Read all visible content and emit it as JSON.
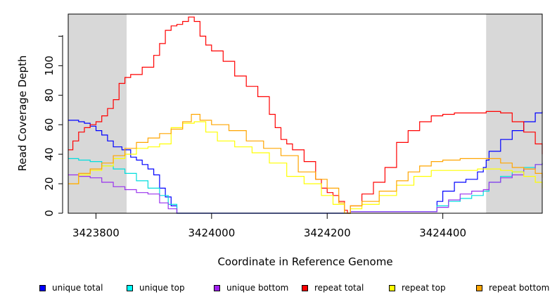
{
  "chart_data": {
    "type": "line",
    "xlabel": "Coordinate in Reference Genome",
    "ylabel": "Read Coverage Depth",
    "xlim": [
      3423752,
      3424572
    ],
    "ylim": [
      0,
      135
    ],
    "x_ticks": [
      3423800,
      3424000,
      3424200,
      3424400
    ],
    "y_ticks": [
      0,
      20,
      40,
      60,
      80,
      100
    ],
    "shaded_regions": [
      [
        3423752,
        3423853
      ],
      [
        3424475,
        3424572
      ]
    ],
    "grid": false,
    "legend_position": "bottom",
    "series": [
      {
        "name": "unique total",
        "color": "#0000ff",
        "x": [
          3423752,
          3423770,
          3423780,
          3423790,
          3423800,
          3423810,
          3423820,
          3423830,
          3423845,
          3423860,
          3423870,
          3423880,
          3423890,
          3423900,
          3423910,
          3423920,
          3423930,
          3423940,
          3423950,
          3424000,
          3424100,
          3424200,
          3424230,
          3424240,
          3424300,
          3424380,
          3424390,
          3424400,
          3424420,
          3424440,
          3424460,
          3424470,
          3424475,
          3424480,
          3424500,
          3424520,
          3424540,
          3424560,
          3424572
        ],
        "y": [
          63,
          62,
          61,
          59,
          56,
          53,
          49,
          45,
          43,
          38,
          36,
          33,
          30,
          26,
          17,
          11,
          5,
          0,
          0,
          0,
          0,
          0,
          0,
          1,
          1,
          1,
          8,
          15,
          21,
          23,
          28,
          31,
          36,
          42,
          50,
          56,
          62,
          68,
          69
        ]
      },
      {
        "name": "unique top",
        "color": "#00dddd",
        "x": [
          3423752,
          3423770,
          3423790,
          3423810,
          3423830,
          3423850,
          3423870,
          3423890,
          3423910,
          3423925,
          3423940,
          3424000,
          3424100,
          3424200,
          3424230,
          3424240,
          3424300,
          3424380,
          3424390,
          3424410,
          3424430,
          3424450,
          3424470,
          3424480,
          3424500,
          3424520,
          3424540,
          3424560,
          3424572
        ],
        "y": [
          37,
          36,
          35,
          32,
          30,
          27,
          22,
          17,
          12,
          6,
          0,
          0,
          0,
          0,
          0,
          1,
          1,
          1,
          5,
          8,
          10,
          12,
          15,
          21,
          25,
          28,
          31,
          33,
          34
        ]
      },
      {
        "name": "unique bottom",
        "color": "#9933ee",
        "x": [
          3423752,
          3423770,
          3423790,
          3423810,
          3423830,
          3423850,
          3423870,
          3423890,
          3423910,
          3423925,
          3423940,
          3424000,
          3424100,
          3424200,
          3424230,
          3424240,
          3424300,
          3424380,
          3424390,
          3424410,
          3424430,
          3424450,
          3424470,
          3424480,
          3424500,
          3424520,
          3424540,
          3424560,
          3424572
        ],
        "y": [
          26,
          25,
          24,
          21,
          18,
          16,
          14,
          13,
          7,
          3,
          0,
          0,
          0,
          0,
          0,
          1,
          1,
          1,
          4,
          9,
          13,
          15,
          16,
          21,
          24,
          26,
          30,
          33,
          34
        ]
      },
      {
        "name": "repeat total",
        "color": "#ff0000",
        "x": [
          3423752,
          3423760,
          3423770,
          3423780,
          3423790,
          3423800,
          3423810,
          3423820,
          3423830,
          3423840,
          3423850,
          3423860,
          3423880,
          3423900,
          3423910,
          3423920,
          3423930,
          3423940,
          3423950,
          3423960,
          3423970,
          3423980,
          3423990,
          3424000,
          3424020,
          3424040,
          3424060,
          3424080,
          3424100,
          3424110,
          3424120,
          3424130,
          3424140,
          3424160,
          3424180,
          3424190,
          3424200,
          3424210,
          3424220,
          3424230,
          3424235,
          3424240,
          3424260,
          3424280,
          3424300,
          3424320,
          3424340,
          3424360,
          3424380,
          3424400,
          3424420,
          3424440,
          3424460,
          3424475,
          3424500,
          3424520,
          3424540,
          3424560,
          3424572
        ],
        "y": [
          43,
          49,
          55,
          58,
          60,
          62,
          66,
          71,
          77,
          88,
          92,
          94,
          99,
          107,
          115,
          124,
          127,
          128,
          130,
          133,
          130,
          120,
          114,
          110,
          103,
          93,
          86,
          79,
          67,
          58,
          50,
          47,
          43,
          35,
          23,
          17,
          14,
          12,
          8,
          2,
          0,
          5,
          13,
          21,
          31,
          48,
          56,
          62,
          66,
          67,
          68,
          68,
          68,
          69,
          68,
          62,
          55,
          47,
          40
        ]
      },
      {
        "name": "repeat top",
        "color": "#ffff00",
        "x": [
          3423752,
          3423770,
          3423790,
          3423810,
          3423830,
          3423850,
          3423870,
          3423890,
          3423910,
          3423930,
          3423950,
          3423970,
          3423990,
          3424010,
          3424040,
          3424070,
          3424100,
          3424130,
          3424160,
          3424190,
          3424210,
          3424230,
          3424240,
          3424260,
          3424290,
          3424320,
          3424350,
          3424380,
          3424400,
          3424430,
          3424460,
          3424475,
          3424500,
          3424520,
          3424540,
          3424560,
          3424572
        ],
        "y": [
          20,
          26,
          29,
          32,
          37,
          40,
          44,
          45,
          47,
          58,
          61,
          62,
          55,
          49,
          45,
          41,
          34,
          25,
          20,
          12,
          6,
          0,
          3,
          6,
          12,
          19,
          25,
          29,
          29,
          29,
          30,
          30,
          29,
          28,
          25,
          21,
          17
        ]
      },
      {
        "name": "repeat bottom",
        "color": "#ffa500",
        "x": [
          3423752,
          3423770,
          3423790,
          3423810,
          3423830,
          3423850,
          3423870,
          3423890,
          3423910,
          3423930,
          3423950,
          3423965,
          3423980,
          3424000,
          3424030,
          3424060,
          3424090,
          3424120,
          3424150,
          3424180,
          3424200,
          3424220,
          3424230,
          3424240,
          3424260,
          3424290,
          3424320,
          3424340,
          3424360,
          3424380,
          3424400,
          3424430,
          3424460,
          3424475,
          3424500,
          3424520,
          3424540,
          3424560,
          3424572
        ],
        "y": [
          20,
          27,
          30,
          34,
          39,
          44,
          48,
          51,
          54,
          57,
          62,
          67,
          63,
          60,
          56,
          49,
          44,
          39,
          28,
          23,
          17,
          7,
          0,
          5,
          8,
          15,
          22,
          28,
          32,
          35,
          36,
          37,
          37,
          37,
          34,
          31,
          30,
          27,
          24
        ]
      }
    ]
  },
  "legend": {
    "items": [
      {
        "label": "unique total",
        "color": "#0000ff"
      },
      {
        "label": "unique top",
        "color": "#00ffff"
      },
      {
        "label": "unique bottom",
        "color": "#a020f0"
      },
      {
        "label": "repeat total",
        "color": "#ff0000"
      },
      {
        "label": "repeat top",
        "color": "#ffff00"
      },
      {
        "label": "repeat bottom",
        "color": "#ffa500"
      }
    ]
  }
}
